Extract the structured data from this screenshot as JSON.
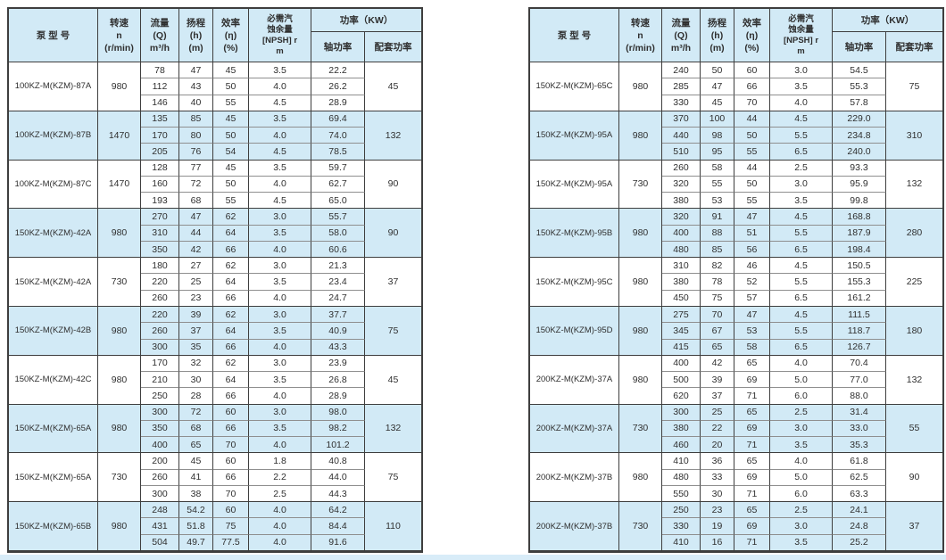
{
  "page": {
    "description": "KZ-M(KZM) pump model performance specification tables",
    "colors": {
      "page_bg": "#ffffff",
      "header_bg": "#d2eaf6",
      "highlight_row_bg": "#d2eaf6",
      "row_bg": "#ffffff",
      "grid_dark": "#3e3e3e",
      "grid_light": "#8f8f8f",
      "text": "#2f2f2f",
      "bottom_strip": "#d8ecf8"
    }
  },
  "header": {
    "model": "泵  型  号",
    "speed": "转速\nn\n(r/min)",
    "flow": "流量\n(Q)\nm³/h",
    "head": "扬程\n(h)\n(m)",
    "efficiency": "效率\n(η)\n(%)",
    "npsh": "必需汽\n蚀余量\n[NPSH] r\nm",
    "power": "功率（KW）",
    "shaft_power": "轴功率",
    "rated_power": "配套功率"
  },
  "tables": [
    {
      "name": "left-table",
      "groups": [
        {
          "model": "100KZ-M(KZM)-87A",
          "speed": "980",
          "highlight": false,
          "rated": "45",
          "rows": [
            [
              "78",
              "47",
              "45",
              "3.5",
              "22.2"
            ],
            [
              "112",
              "43",
              "50",
              "4.0",
              "26.2"
            ],
            [
              "146",
              "40",
              "55",
              "4.5",
              "28.9"
            ]
          ]
        },
        {
          "model": "100KZ-M(KZM)-87B",
          "speed": "1470",
          "highlight": true,
          "rated": "132",
          "rows": [
            [
              "135",
              "85",
              "45",
              "3.5",
              "69.4"
            ],
            [
              "170",
              "80",
              "50",
              "4.0",
              "74.0"
            ],
            [
              "205",
              "76",
              "54",
              "4.5",
              "78.5"
            ]
          ]
        },
        {
          "model": "100KZ-M(KZM)-87C",
          "speed": "1470",
          "highlight": false,
          "rated": "90",
          "rows": [
            [
              "128",
              "77",
              "45",
              "3.5",
              "59.7"
            ],
            [
              "160",
              "72",
              "50",
              "4.0",
              "62.7"
            ],
            [
              "193",
              "68",
              "55",
              "4.5",
              "65.0"
            ]
          ]
        },
        {
          "model": "150KZ-M(KZM)-42A",
          "speed": "980",
          "highlight": true,
          "rated": "90",
          "rows": [
            [
              "270",
              "47",
              "62",
              "3.0",
              "55.7"
            ],
            [
              "310",
              "44",
              "64",
              "3.5",
              "58.0"
            ],
            [
              "350",
              "42",
              "66",
              "4.0",
              "60.6"
            ]
          ]
        },
        {
          "model": "150KZ-M(KZM)-42A",
          "speed": "730",
          "highlight": false,
          "rated": "37",
          "rows": [
            [
              "180",
              "27",
              "62",
              "3.0",
              "21.3"
            ],
            [
              "220",
              "25",
              "64",
              "3.5",
              "23.4"
            ],
            [
              "260",
              "23",
              "66",
              "4.0",
              "24.7"
            ]
          ]
        },
        {
          "model": "150KZ-M(KZM)-42B",
          "speed": "980",
          "highlight": true,
          "rated": "75",
          "rows": [
            [
              "220",
              "39",
              "62",
              "3.0",
              "37.7"
            ],
            [
              "260",
              "37",
              "64",
              "3.5",
              "40.9"
            ],
            [
              "300",
              "35",
              "66",
              "4.0",
              "43.3"
            ]
          ]
        },
        {
          "model": "150KZ-M(KZM)-42C",
          "speed": "980",
          "highlight": false,
          "rated": "45",
          "rows": [
            [
              "170",
              "32",
              "62",
              "3.0",
              "23.9"
            ],
            [
              "210",
              "30",
              "64",
              "3.5",
              "26.8"
            ],
            [
              "250",
              "28",
              "66",
              "4.0",
              "28.9"
            ]
          ]
        },
        {
          "model": "150KZ-M(KZM)-65A",
          "speed": "980",
          "highlight": true,
          "rated": "132",
          "rows": [
            [
              "300",
              "72",
              "60",
              "3.0",
              "98.0"
            ],
            [
              "350",
              "68",
              "66",
              "3.5",
              "98.2"
            ],
            [
              "400",
              "65",
              "70",
              "4.0",
              "101.2"
            ]
          ]
        },
        {
          "model": "150KZ-M(KZM)-65A",
          "speed": "730",
          "highlight": false,
          "rated": "75",
          "rows": [
            [
              "200",
              "45",
              "60",
              "1.8",
              "40.8"
            ],
            [
              "260",
              "41",
              "66",
              "2.2",
              "44.0"
            ],
            [
              "300",
              "38",
              "70",
              "2.5",
              "44.3"
            ]
          ]
        },
        {
          "model": "150KZ-M(KZM)-65B",
          "speed": "980",
          "highlight": true,
          "rated": "110",
          "rows": [
            [
              "248",
              "54.2",
              "60",
              "4.0",
              "64.2"
            ],
            [
              "431",
              "51.8",
              "75",
              "4.0",
              "84.4"
            ],
            [
              "504",
              "49.7",
              "77.5",
              "4.0",
              "91.6"
            ]
          ]
        }
      ]
    },
    {
      "name": "right-table",
      "groups": [
        {
          "model": "150KZ-M(KZM)-65C",
          "speed": "980",
          "highlight": false,
          "rated": "75",
          "rows": [
            [
              "240",
              "50",
              "60",
              "3.0",
              "54.5"
            ],
            [
              "285",
              "47",
              "66",
              "3.5",
              "55.3"
            ],
            [
              "330",
              "45",
              "70",
              "4.0",
              "57.8"
            ]
          ]
        },
        {
          "model": "150KZ-M(KZM)-95A",
          "speed": "980",
          "highlight": true,
          "rated": "310",
          "rows": [
            [
              "370",
              "100",
              "44",
              "4.5",
              "229.0"
            ],
            [
              "440",
              "98",
              "50",
              "5.5",
              "234.8"
            ],
            [
              "510",
              "95",
              "55",
              "6.5",
              "240.0"
            ]
          ]
        },
        {
          "model": "150KZ-M(KZM)-95A",
          "speed": "730",
          "highlight": false,
          "rated": "132",
          "rows": [
            [
              "260",
              "58",
              "44",
              "2.5",
              "93.3"
            ],
            [
              "320",
              "55",
              "50",
              "3.0",
              "95.9"
            ],
            [
              "380",
              "53",
              "55",
              "3.5",
              "99.8"
            ]
          ]
        },
        {
          "model": "150KZ-M(KZM)-95B",
          "speed": "980",
          "highlight": true,
          "rated": "280",
          "rows": [
            [
              "320",
              "91",
              "47",
              "4.5",
              "168.8"
            ],
            [
              "400",
              "88",
              "51",
              "5.5",
              "187.9"
            ],
            [
              "480",
              "85",
              "56",
              "6.5",
              "198.4"
            ]
          ]
        },
        {
          "model": "150KZ-M(KZM)-95C",
          "speed": "980",
          "highlight": false,
          "rated": "225",
          "rows": [
            [
              "310",
              "82",
              "46",
              "4.5",
              "150.5"
            ],
            [
              "380",
              "78",
              "52",
              "5.5",
              "155.3"
            ],
            [
              "450",
              "75",
              "57",
              "6.5",
              "161.2"
            ]
          ]
        },
        {
          "model": "150KZ-M(KZM)-95D",
          "speed": "980",
          "highlight": true,
          "rated": "180",
          "rows": [
            [
              "275",
              "70",
              "47",
              "4.5",
              "111.5"
            ],
            [
              "345",
              "67",
              "53",
              "5.5",
              "118.7"
            ],
            [
              "415",
              "65",
              "58",
              "6.5",
              "126.7"
            ]
          ]
        },
        {
          "model": "200KZ-M(KZM)-37A",
          "speed": "980",
          "highlight": false,
          "rated": "132",
          "rows": [
            [
              "400",
              "42",
              "65",
              "4.0",
              "70.4"
            ],
            [
              "500",
              "39",
              "69",
              "5.0",
              "77.0"
            ],
            [
              "620",
              "37",
              "71",
              "6.0",
              "88.0"
            ]
          ]
        },
        {
          "model": "200KZ-M(KZM)-37A",
          "speed": "730",
          "highlight": true,
          "rated": "55",
          "rows": [
            [
              "300",
              "25",
              "65",
              "2.5",
              "31.4"
            ],
            [
              "380",
              "22",
              "69",
              "3.0",
              "33.0"
            ],
            [
              "460",
              "20",
              "71",
              "3.5",
              "35.3"
            ]
          ]
        },
        {
          "model": "200KZ-M(KZM)-37B",
          "speed": "980",
          "highlight": false,
          "rated": "90",
          "rows": [
            [
              "410",
              "36",
              "65",
              "4.0",
              "61.8"
            ],
            [
              "480",
              "33",
              "69",
              "5.0",
              "62.5"
            ],
            [
              "550",
              "30",
              "71",
              "6.0",
              "63.3"
            ]
          ]
        },
        {
          "model": "200KZ-M(KZM)-37B",
          "speed": "730",
          "highlight": true,
          "rated": "37",
          "rows": [
            [
              "250",
              "23",
              "65",
              "2.5",
              "24.1"
            ],
            [
              "330",
              "19",
              "69",
              "3.0",
              "24.8"
            ],
            [
              "410",
              "16",
              "71",
              "3.5",
              "25.2"
            ]
          ]
        }
      ]
    }
  ]
}
